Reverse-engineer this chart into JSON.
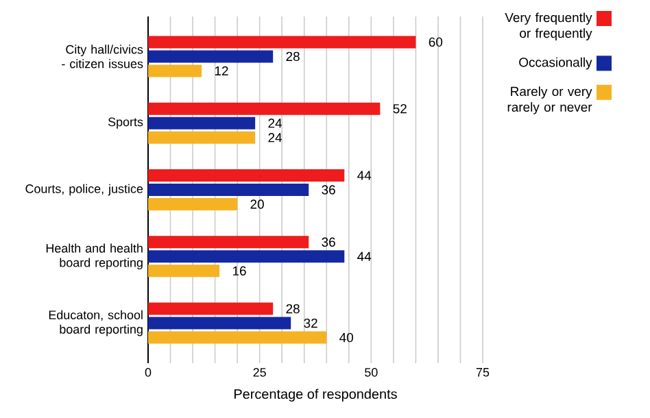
{
  "chart_data": {
    "type": "bar",
    "orientation": "horizontal",
    "categories": [
      "City hall/civics - citizen issues",
      "Sports",
      "Courts, police, justice",
      "Health and health board reporting",
      "Educaton, school board reporting"
    ],
    "series": [
      {
        "name": "Very frequently or frequently",
        "color": "#ee1c1c",
        "values": [
          60,
          52,
          44,
          36,
          28
        ]
      },
      {
        "name": "Occasionally",
        "color": "#1428a0",
        "values": [
          28,
          24,
          36,
          44,
          32
        ]
      },
      {
        "name": "Rarely or very rarely or never",
        "color": "#f5b324",
        "values": [
          12,
          24,
          20,
          16,
          40
        ]
      }
    ],
    "xlabel": "Percentage of respondents",
    "xlim": [
      0,
      75
    ],
    "xticks": [
      0,
      {
        "value": 5,
        "label": null
      },
      {
        "value": 10,
        "label": null
      },
      {
        "value": 15,
        "label": null
      },
      {
        "value": 20,
        "label": null
      },
      25,
      {
        "value": 30,
        "label": null
      },
      {
        "value": 35,
        "label": null
      },
      {
        "value": 40,
        "label": null
      },
      {
        "value": 45,
        "label": null
      },
      50,
      {
        "value": 55,
        "label": null
      },
      {
        "value": 60,
        "label": null
      },
      {
        "value": 65,
        "label": null
      },
      {
        "value": 70,
        "label": null
      },
      75
    ],
    "grid": "x",
    "legend": "right",
    "data_labels": true
  }
}
